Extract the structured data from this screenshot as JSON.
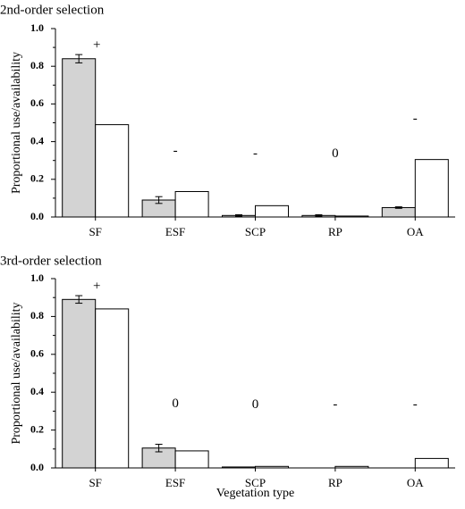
{
  "figure": {
    "xlabel": "Vegetation type",
    "colors": {
      "use": "#d3d3d3",
      "availability": "#ffffff",
      "stroke": "#000000"
    }
  },
  "chart_data": [
    {
      "type": "bar",
      "title": "2nd-order selection",
      "ylabel": "Proportional use/availability",
      "xlabel": "",
      "categories": [
        "SF",
        "ESF",
        "SCP",
        "RP",
        "OA"
      ],
      "ylim": [
        0,
        1.0
      ],
      "yticks": [
        "0.0",
        "0.2",
        "0.4",
        "0.6",
        "0.8",
        "1.0"
      ],
      "series": [
        {
          "key": "use",
          "values": [
            0.84,
            0.09,
            0.008,
            0.008,
            0.05
          ],
          "errors": [
            0.022,
            0.018,
            0.004,
            0.004,
            0.004
          ]
        },
        {
          "key": "availability",
          "values": [
            0.49,
            0.135,
            0.06,
            0.005,
            0.305
          ]
        }
      ],
      "significance": [
        "+",
        "-",
        "-",
        "0",
        "-"
      ],
      "grid": false
    },
    {
      "type": "bar",
      "title": "3rd-order selection",
      "ylabel": "Proportional use/availability",
      "xlabel": "Vegetation type",
      "categories": [
        "SF",
        "ESF",
        "SCP",
        "RP",
        "OA"
      ],
      "ylim": [
        0,
        1.0
      ],
      "yticks": [
        "0.0",
        "0.2",
        "0.4",
        "0.6",
        "0.8",
        "1.0"
      ],
      "series": [
        {
          "key": "use",
          "values": [
            0.89,
            0.105,
            0.005,
            0.0,
            0.0
          ],
          "errors": [
            0.02,
            0.02,
            0.0,
            0.0,
            0.0
          ]
        },
        {
          "key": "availability",
          "values": [
            0.84,
            0.09,
            0.008,
            0.008,
            0.05
          ]
        }
      ],
      "significance": [
        "+",
        "0",
        "0",
        "-",
        "-"
      ],
      "grid": false
    }
  ]
}
